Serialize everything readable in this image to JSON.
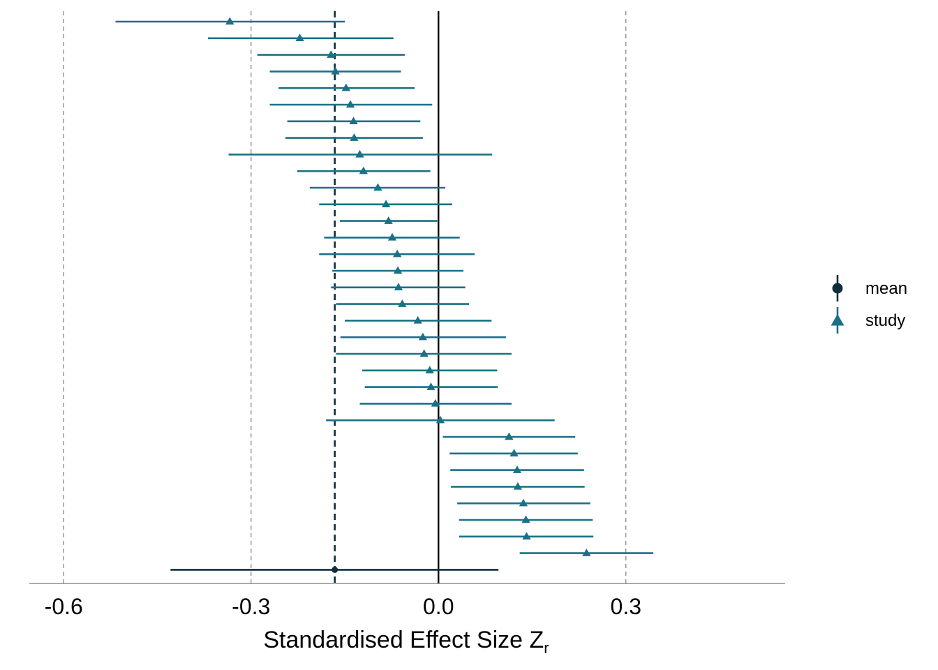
{
  "chart_data": {
    "type": "forest",
    "xlabel": "Standardised Effect Size Z",
    "xlabel_sub": "r",
    "xlim": [
      -0.655,
      0.555
    ],
    "xticks": [
      -0.6,
      -0.3,
      0.0,
      0.3
    ],
    "xtick_labels": [
      "-0.6",
      "-0.3",
      "0.0",
      "0.3"
    ],
    "reference_lines": {
      "solid": 0.0,
      "dashed_grey": [
        -0.6,
        -0.3,
        0.3
      ],
      "dashed_mean": -0.166
    },
    "grid": false,
    "legend_position": "right",
    "colors": {
      "study": "#1A7185",
      "mean": "#0F2E3A",
      "dashed_grey": "#888888",
      "zero": "#000000"
    },
    "legend": [
      {
        "key": "mean",
        "label": "mean",
        "shape": "circle",
        "color": "#0F2E3A"
      },
      {
        "key": "study",
        "label": "study",
        "shape": "triangle",
        "color": "#1A7185"
      }
    ],
    "series": [
      {
        "name": "study",
        "points": [
          {
            "est": -0.334,
            "lo": -0.517,
            "hi": -0.15
          },
          {
            "est": -0.222,
            "lo": -0.369,
            "hi": -0.072
          },
          {
            "est": -0.172,
            "lo": -0.29,
            "hi": -0.054
          },
          {
            "est": -0.165,
            "lo": -0.27,
            "hi": -0.06
          },
          {
            "est": -0.148,
            "lo": -0.256,
            "hi": -0.038
          },
          {
            "est": -0.141,
            "lo": -0.27,
            "hi": -0.01
          },
          {
            "est": -0.136,
            "lo": -0.242,
            "hi": -0.029
          },
          {
            "est": -0.135,
            "lo": -0.245,
            "hi": -0.025
          },
          {
            "est": -0.126,
            "lo": -0.336,
            "hi": 0.086
          },
          {
            "est": -0.12,
            "lo": -0.226,
            "hi": -0.013
          },
          {
            "est": -0.097,
            "lo": -0.206,
            "hi": 0.011
          },
          {
            "est": -0.084,
            "lo": -0.191,
            "hi": 0.022
          },
          {
            "est": -0.08,
            "lo": -0.158,
            "hi": -0.002
          },
          {
            "est": -0.074,
            "lo": -0.183,
            "hi": 0.034
          },
          {
            "est": -0.066,
            "lo": -0.191,
            "hi": 0.058
          },
          {
            "est": -0.065,
            "lo": -0.17,
            "hi": 0.04
          },
          {
            "est": -0.064,
            "lo": -0.172,
            "hi": 0.043
          },
          {
            "est": -0.058,
            "lo": -0.164,
            "hi": 0.049
          },
          {
            "est": -0.033,
            "lo": -0.15,
            "hi": 0.085
          },
          {
            "est": -0.025,
            "lo": -0.157,
            "hi": 0.108
          },
          {
            "est": -0.023,
            "lo": -0.164,
            "hi": 0.117
          },
          {
            "est": -0.014,
            "lo": -0.122,
            "hi": 0.094
          },
          {
            "est": -0.012,
            "lo": -0.118,
            "hi": 0.095
          },
          {
            "est": -0.005,
            "lo": -0.126,
            "hi": 0.117
          },
          {
            "est": 0.003,
            "lo": -0.18,
            "hi": 0.186
          },
          {
            "est": 0.113,
            "lo": 0.007,
            "hi": 0.219
          },
          {
            "est": 0.121,
            "lo": 0.018,
            "hi": 0.223
          },
          {
            "est": 0.126,
            "lo": 0.019,
            "hi": 0.233
          },
          {
            "est": 0.127,
            "lo": 0.02,
            "hi": 0.234
          },
          {
            "est": 0.136,
            "lo": 0.03,
            "hi": 0.243
          },
          {
            "est": 0.14,
            "lo": 0.033,
            "hi": 0.247
          },
          {
            "est": 0.141,
            "lo": 0.033,
            "hi": 0.248
          },
          {
            "est": 0.237,
            "lo": 0.13,
            "hi": 0.344
          }
        ]
      },
      {
        "name": "mean",
        "points": [
          {
            "est": -0.166,
            "lo": -0.429,
            "hi": 0.096
          }
        ]
      }
    ]
  }
}
